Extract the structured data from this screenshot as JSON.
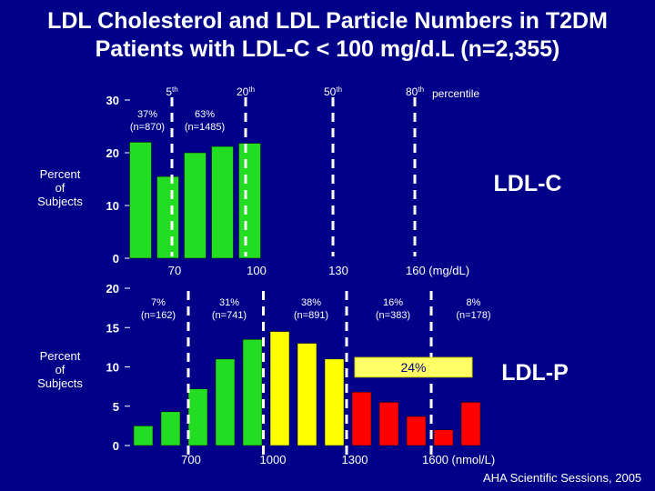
{
  "title_line1": "LDL Cholesterol and LDL Particle Numbers  in T2DM",
  "title_line2": "Patients with LDL-C < 100 mg/d.L (n=2,355)",
  "credit": "AHA Scientific Sessions, 2005",
  "colors": {
    "background": "#000088",
    "green": "#22dd22",
    "yellow": "#ffff00",
    "red": "#ff0000",
    "highlight": "#ffff66"
  },
  "chart_data": [
    {
      "type": "bar",
      "panel": "LDL-C",
      "label": "LDL-C",
      "ylabel": "Percent of Subjects",
      "ylim": [
        0,
        30
      ],
      "yticks": [
        "0",
        "10",
        "20",
        "30"
      ],
      "xlim": [
        55,
        180
      ],
      "xticks": [
        {
          "value": 70,
          "label": "70"
        },
        {
          "value": 100,
          "label": "100"
        },
        {
          "value": 130,
          "label": "130"
        },
        {
          "value": 160,
          "label": "160  (mg/dL)"
        }
      ],
      "bar_width": 8,
      "series": [
        {
          "name": "LDL-C",
          "x": [
            57.5,
            67.5,
            77.5,
            87.5,
            97.5
          ],
          "values": [
            22,
            15.5,
            20,
            21.2,
            21.8
          ],
          "colors": [
            "green",
            "green",
            "green",
            "green",
            "green"
          ]
        }
      ],
      "percentile_lines": [
        {
          "value": 69,
          "label": "5",
          "sup": "th"
        },
        {
          "value": 96,
          "label": "20",
          "sup": "th"
        },
        {
          "value": 128,
          "label": "50",
          "sup": "th"
        },
        {
          "value": 158,
          "label": "80",
          "sup": "th"
        }
      ],
      "percentile_word": "percentile",
      "annotations": [
        {
          "line1": "37%",
          "line2": "(n=870)",
          "x": 60
        },
        {
          "line1": "63%",
          "line2": "(n=1485)",
          "x": 81
        }
      ]
    },
    {
      "type": "bar",
      "panel": "LDL-P",
      "label": "LDL-P",
      "ylabel": "Percent of Subjects",
      "ylim": [
        0,
        20
      ],
      "yticks": [
        "0",
        "5",
        "10",
        "15",
        "20"
      ],
      "xlim": [
        490,
        1750
      ],
      "xticks": [
        {
          "value": 700,
          "label": "700"
        },
        {
          "value": 1000,
          "label": "1000"
        },
        {
          "value": 1300,
          "label": "1300"
        },
        {
          "value": 1600,
          "label": "1600  (nmol/L)"
        }
      ],
      "bar_width": 70,
      "series": [
        {
          "name": "LDL-P",
          "x": [
            525,
            625,
            725,
            825,
            925,
            1025,
            1125,
            1225,
            1325,
            1425,
            1525,
            1625,
            1725
          ],
          "values": [
            2.5,
            4.3,
            7.2,
            11,
            13.5,
            14.5,
            13,
            11,
            6.8,
            5.5,
            3.7,
            2,
            5.5
          ],
          "colors": [
            "green",
            "green",
            "green",
            "green",
            "green",
            "yellow",
            "yellow",
            "yellow",
            "red",
            "red",
            "red",
            "red",
            "red"
          ]
        }
      ],
      "percentile_lines": [
        {
          "value": 690
        },
        {
          "value": 965
        },
        {
          "value": 1270
        },
        {
          "value": 1580
        }
      ],
      "annotations": [
        {
          "line1": "7%",
          "line2": "(n=162)",
          "x": 580
        },
        {
          "line1": "31%",
          "line2": "(n=741)",
          "x": 840
        },
        {
          "line1": "38%",
          "line2": "(n=891)",
          "x": 1140
        },
        {
          "line1": "16%",
          "line2": "(n=383)",
          "x": 1440
        },
        {
          "line1": "8%",
          "line2": "(n=178)",
          "x": 1735
        }
      ],
      "highlight_box": {
        "text": "24%",
        "x_from": 1300,
        "x_to": 1730,
        "y_from": 8.7,
        "y_to": 11.2
      }
    }
  ]
}
